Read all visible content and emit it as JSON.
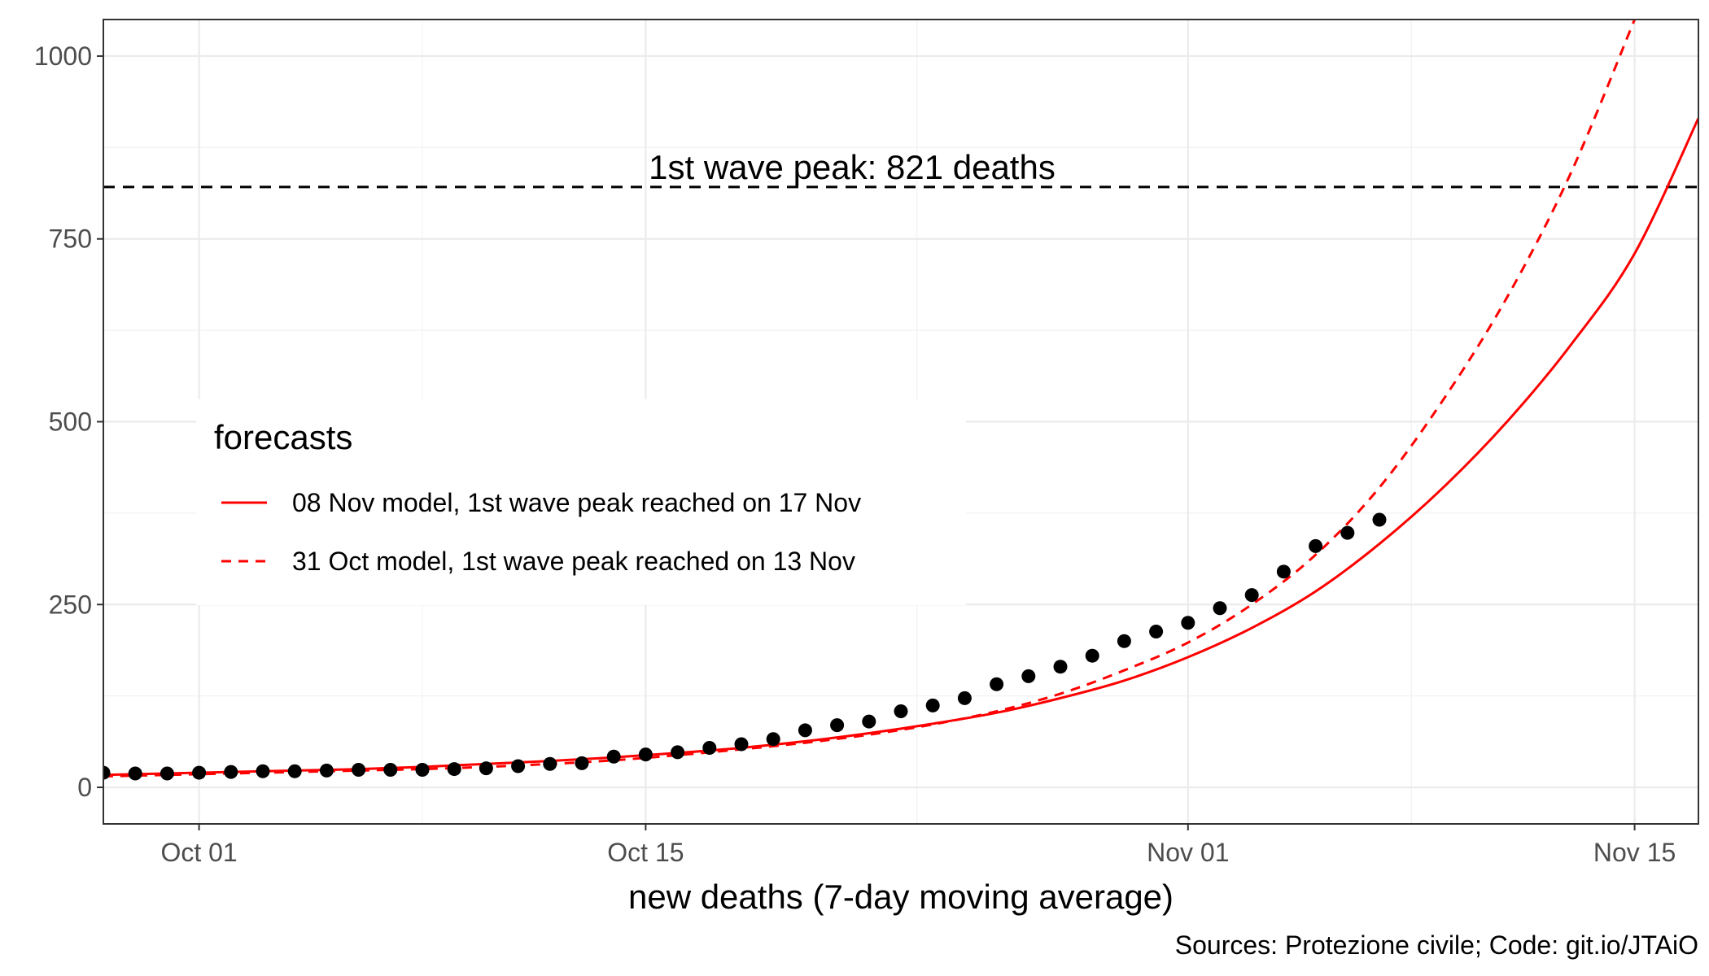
{
  "chart_data": {
    "type": "line",
    "xlabel": "new deaths (7-day moving average)",
    "ylabel": "",
    "caption": "Sources: Protezione civile; Code: git.io/JTAiO",
    "x_axis": {
      "kind": "date",
      "range": [
        "2020-09-28",
        "2020-11-17"
      ],
      "ticks": [
        {
          "date": "2020-10-01",
          "label": "Oct 01"
        },
        {
          "date": "2020-10-15",
          "label": "Oct 15"
        },
        {
          "date": "2020-11-01",
          "label": "Nov 01"
        },
        {
          "date": "2020-11-15",
          "label": "Nov 15"
        }
      ]
    },
    "y_axis": {
      "range": [
        -50,
        1050
      ],
      "ticks": [
        {
          "value": 0,
          "label": "0"
        },
        {
          "value": 250,
          "label": "250"
        },
        {
          "value": 500,
          "label": "500"
        },
        {
          "value": 750,
          "label": "750"
        },
        {
          "value": 1000,
          "label": "1000"
        }
      ]
    },
    "grid": true,
    "reference_line": {
      "value": 821,
      "label": "1st wave peak: 821 deaths",
      "style": "dashed",
      "color": "#000000"
    },
    "legend": {
      "title": "forecasts",
      "position": "center-left",
      "entries": [
        {
          "label": "08 Nov model, 1st wave peak reached on 17 Nov",
          "style": "solid"
        },
        {
          "label": "31 Oct model, 1st wave peak reached on 13 Nov",
          "style": "dashed"
        }
      ]
    },
    "series": [
      {
        "name": "08 Nov model, 1st wave peak reached on 17 Nov",
        "type": "line",
        "style": "solid",
        "color": "#ff0000",
        "points": [
          {
            "date": "2020-09-28",
            "value": 17
          },
          {
            "date": "2020-09-30",
            "value": 19
          },
          {
            "date": "2020-10-02",
            "value": 21
          },
          {
            "date": "2020-10-04",
            "value": 23
          },
          {
            "date": "2020-10-06",
            "value": 25
          },
          {
            "date": "2020-10-08",
            "value": 28
          },
          {
            "date": "2020-10-10",
            "value": 32
          },
          {
            "date": "2020-10-12",
            "value": 36
          },
          {
            "date": "2020-10-14",
            "value": 41
          },
          {
            "date": "2020-10-16",
            "value": 47
          },
          {
            "date": "2020-10-18",
            "value": 54
          },
          {
            "date": "2020-10-20",
            "value": 63
          },
          {
            "date": "2020-10-22",
            "value": 74
          },
          {
            "date": "2020-10-24",
            "value": 87
          },
          {
            "date": "2020-10-26",
            "value": 102
          },
          {
            "date": "2020-10-28",
            "value": 122
          },
          {
            "date": "2020-10-30",
            "value": 146
          },
          {
            "date": "2020-11-01",
            "value": 178
          },
          {
            "date": "2020-11-03",
            "value": 218
          },
          {
            "date": "2020-11-05",
            "value": 268
          },
          {
            "date": "2020-11-07",
            "value": 333
          },
          {
            "date": "2020-11-09",
            "value": 410
          },
          {
            "date": "2020-11-11",
            "value": 500
          },
          {
            "date": "2020-11-13",
            "value": 605
          },
          {
            "date": "2020-11-15",
            "value": 730
          },
          {
            "date": "2020-11-17",
            "value": 915
          }
        ]
      },
      {
        "name": "31 Oct model, 1st wave peak reached on 13 Nov",
        "type": "line",
        "style": "dashed",
        "color": "#ff0000",
        "points": [
          {
            "date": "2020-09-28",
            "value": 15
          },
          {
            "date": "2020-09-30",
            "value": 17
          },
          {
            "date": "2020-10-02",
            "value": 19
          },
          {
            "date": "2020-10-04",
            "value": 21
          },
          {
            "date": "2020-10-06",
            "value": 23
          },
          {
            "date": "2020-10-08",
            "value": 25
          },
          {
            "date": "2020-10-10",
            "value": 28
          },
          {
            "date": "2020-10-12",
            "value": 32
          },
          {
            "date": "2020-10-14",
            "value": 37
          },
          {
            "date": "2020-10-16",
            "value": 44
          },
          {
            "date": "2020-10-18",
            "value": 52
          },
          {
            "date": "2020-10-20",
            "value": 61
          },
          {
            "date": "2020-10-22",
            "value": 72
          },
          {
            "date": "2020-10-24",
            "value": 86
          },
          {
            "date": "2020-10-26",
            "value": 104
          },
          {
            "date": "2020-10-28",
            "value": 128
          },
          {
            "date": "2020-10-30",
            "value": 160
          },
          {
            "date": "2020-11-01",
            "value": 198
          },
          {
            "date": "2020-11-03",
            "value": 250
          },
          {
            "date": "2020-11-05",
            "value": 318
          },
          {
            "date": "2020-11-07",
            "value": 410
          },
          {
            "date": "2020-11-09",
            "value": 530
          },
          {
            "date": "2020-11-11",
            "value": 670
          },
          {
            "date": "2020-11-13",
            "value": 840
          },
          {
            "date": "2020-11-15",
            "value": 1050
          }
        ]
      },
      {
        "name": "",
        "type": "scatter",
        "color": "#000000",
        "points": [
          {
            "date": "2020-09-28",
            "value": 20
          },
          {
            "date": "2020-09-29",
            "value": 19
          },
          {
            "date": "2020-09-30",
            "value": 19
          },
          {
            "date": "2020-10-01",
            "value": 20
          },
          {
            "date": "2020-10-02",
            "value": 21
          },
          {
            "date": "2020-10-03",
            "value": 22
          },
          {
            "date": "2020-10-04",
            "value": 22
          },
          {
            "date": "2020-10-05",
            "value": 23
          },
          {
            "date": "2020-10-06",
            "value": 24
          },
          {
            "date": "2020-10-07",
            "value": 24
          },
          {
            "date": "2020-10-08",
            "value": 24
          },
          {
            "date": "2020-10-09",
            "value": 25
          },
          {
            "date": "2020-10-10",
            "value": 26
          },
          {
            "date": "2020-10-11",
            "value": 29
          },
          {
            "date": "2020-10-12",
            "value": 32
          },
          {
            "date": "2020-10-13",
            "value": 33
          },
          {
            "date": "2020-10-14",
            "value": 42
          },
          {
            "date": "2020-10-15",
            "value": 45
          },
          {
            "date": "2020-10-16",
            "value": 48
          },
          {
            "date": "2020-10-17",
            "value": 54
          },
          {
            "date": "2020-10-18",
            "value": 59
          },
          {
            "date": "2020-10-19",
            "value": 66
          },
          {
            "date": "2020-10-20",
            "value": 78
          },
          {
            "date": "2020-10-21",
            "value": 85
          },
          {
            "date": "2020-10-22",
            "value": 90
          },
          {
            "date": "2020-10-23",
            "value": 104
          },
          {
            "date": "2020-10-24",
            "value": 112
          },
          {
            "date": "2020-10-25",
            "value": 122
          },
          {
            "date": "2020-10-26",
            "value": 141
          },
          {
            "date": "2020-10-27",
            "value": 152
          },
          {
            "date": "2020-10-28",
            "value": 165
          },
          {
            "date": "2020-10-29",
            "value": 180
          },
          {
            "date": "2020-10-30",
            "value": 200
          },
          {
            "date": "2020-10-31",
            "value": 213
          },
          {
            "date": "2020-11-01",
            "value": 225
          },
          {
            "date": "2020-11-02",
            "value": 245
          },
          {
            "date": "2020-11-03",
            "value": 263
          },
          {
            "date": "2020-11-04",
            "value": 295
          },
          {
            "date": "2020-11-05",
            "value": 330
          },
          {
            "date": "2020-11-06",
            "value": 348
          },
          {
            "date": "2020-11-07",
            "value": 366
          }
        ]
      }
    ]
  }
}
